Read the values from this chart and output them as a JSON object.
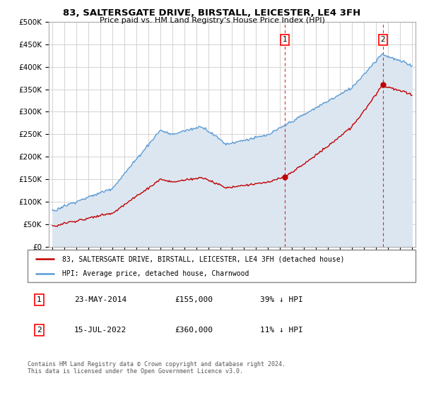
{
  "title": "83, SALTERSGATE DRIVE, BIRSTALL, LEICESTER, LE4 3FH",
  "subtitle": "Price paid vs. HM Land Registry's House Price Index (HPI)",
  "ylabel_ticks": [
    "£0",
    "£50K",
    "£100K",
    "£150K",
    "£200K",
    "£250K",
    "£300K",
    "£350K",
    "£400K",
    "£450K",
    "£500K"
  ],
  "ytick_values": [
    0,
    50000,
    100000,
    150000,
    200000,
    250000,
    300000,
    350000,
    400000,
    450000,
    500000
  ],
  "ylim": [
    0,
    500000
  ],
  "hpi_color": "#5b9bd5",
  "hpi_fill_color": "#dce6f1",
  "price_color": "#c00000",
  "purchase1": {
    "date": "23-MAY-2014",
    "price": 155000,
    "label": "39% ↓ HPI"
  },
  "purchase2": {
    "date": "15-JUL-2022",
    "price": 360000,
    "label": "11% ↓ HPI"
  },
  "legend_label_red": "83, SALTERSGATE DRIVE, BIRSTALL, LEICESTER, LE4 3FH (detached house)",
  "legend_label_blue": "HPI: Average price, detached house, Charnwood",
  "footer": "Contains HM Land Registry data © Crown copyright and database right 2024.\nThis data is licensed under the Open Government Licence v3.0.",
  "background_color": "#ffffff",
  "grid_color": "#cccccc",
  "x_start_year": 1995,
  "x_end_year": 2025
}
